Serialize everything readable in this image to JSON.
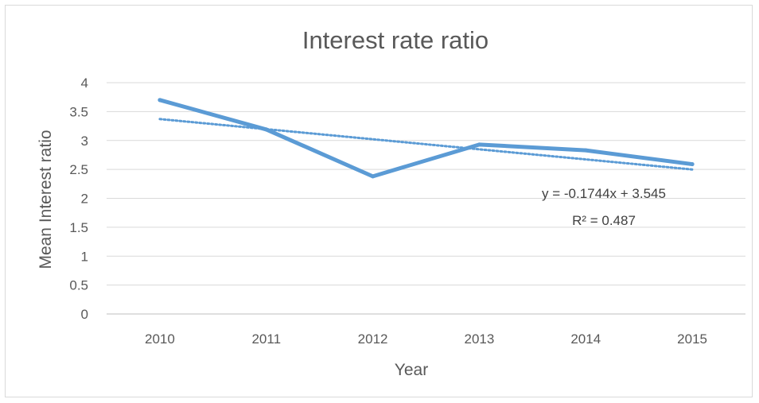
{
  "chart_data": {
    "type": "line",
    "title": "Interest rate ratio",
    "xlabel": "Year",
    "ylabel": "Mean Interest ratio",
    "categories": [
      "2010",
      "2011",
      "2012",
      "2013",
      "2014",
      "2015"
    ],
    "series": [
      {
        "values": [
          3.7,
          3.19,
          2.38,
          2.93,
          2.83,
          2.59
        ],
        "color": "#5b9bd5"
      }
    ],
    "trendline": {
      "type": "linear",
      "style": "dotted",
      "slope": -0.1744,
      "intercept": 3.545,
      "equation_label": "y = -0.1744x + 3.545",
      "r2_label": "R² = 0.487",
      "color": "#5b9bd5"
    },
    "ylim": [
      0,
      4
    ],
    "yticks": [
      "0",
      "0.5",
      "1",
      "1.5",
      "2",
      "2.5",
      "3",
      "3.5",
      "4"
    ],
    "grid": true,
    "legend": "none"
  }
}
